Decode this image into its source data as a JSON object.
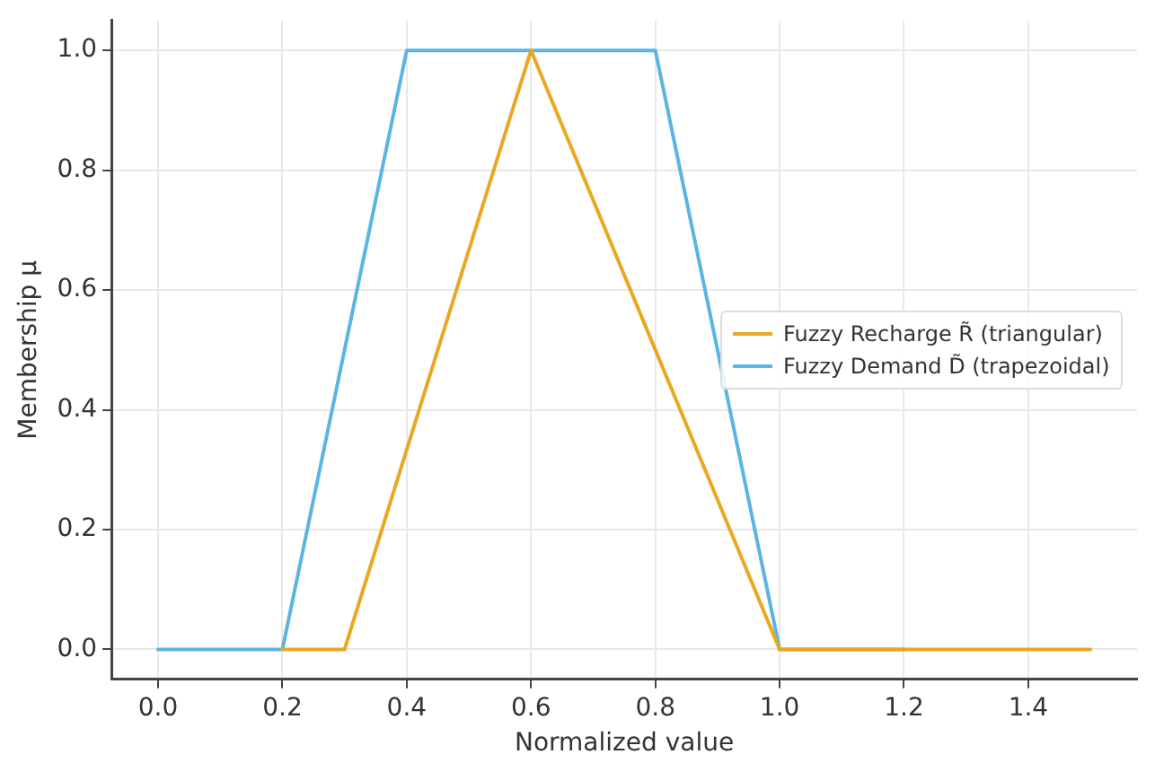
{
  "chart_data": {
    "type": "line",
    "xlabel": "Normalized value",
    "ylabel": "Membership μ",
    "xlim": [
      -0.075,
      1.575
    ],
    "xticks": [
      {
        "value": 0,
        "label": "0.0"
      },
      0.2,
      0.4,
      0.6,
      0.8,
      {
        "value": 1,
        "label": "1.0"
      },
      1.2,
      1.4
    ],
    "ylim": [
      -0.05,
      1.05
    ],
    "yticks": [
      {
        "value": 0,
        "label": "0.0"
      },
      0.2,
      0.4,
      0.6,
      0.8,
      {
        "value": 1,
        "label": "1.0"
      }
    ],
    "grid": true,
    "legend": "right",
    "marker": "none",
    "line_style": "solid",
    "series": [
      {
        "name": "Fuzzy Recharge R̃ (triangular)",
        "color": "#e8a822",
        "x": [
          0.2,
          0.3,
          0.6,
          1.0,
          1.5
        ],
        "values": [
          0,
          0,
          1,
          0,
          0
        ]
      },
      {
        "name": "Fuzzy Demand D̃ (trapezoidal)",
        "color": "#5bb5e2",
        "x": [
          0,
          0.2,
          0.4,
          0.8,
          1.0,
          1.2
        ],
        "values": [
          0,
          0,
          1,
          1,
          0,
          0
        ]
      }
    ]
  }
}
